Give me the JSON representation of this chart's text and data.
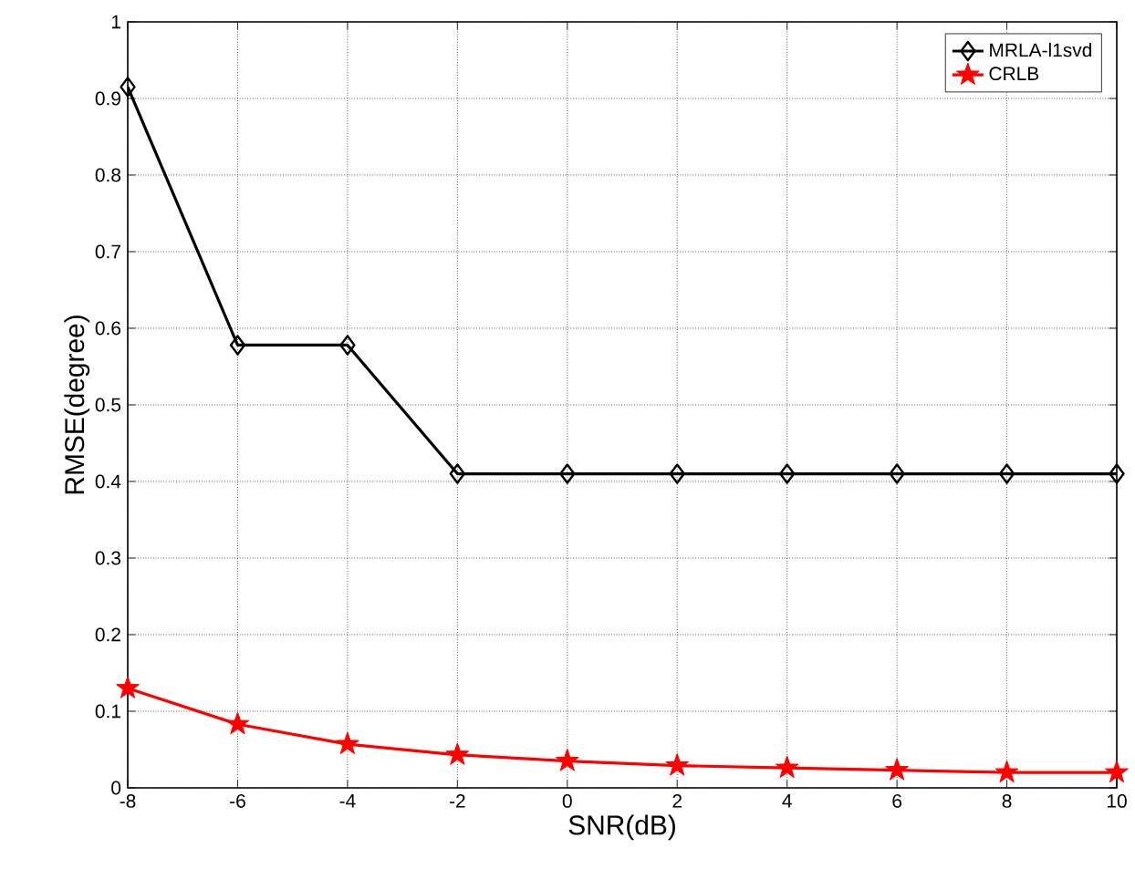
{
  "chart_data": {
    "type": "line",
    "xlabel": "SNR(dB)",
    "ylabel": "RMSE(degree)",
    "x": [
      -8,
      -6,
      -4,
      -2,
      0,
      2,
      4,
      6,
      8,
      10
    ],
    "series": [
      {
        "name": "MRLA-l1svd",
        "color": "#000000",
        "marker": "diamond",
        "values": [
          0.915,
          0.578,
          0.578,
          0.41,
          0.41,
          0.41,
          0.41,
          0.41,
          0.41,
          0.41
        ]
      },
      {
        "name": "CRLB",
        "color": "#ff0000",
        "marker": "star",
        "values": [
          0.13,
          0.083,
          0.057,
          0.043,
          0.035,
          0.029,
          0.026,
          0.023,
          0.02,
          0.02
        ]
      }
    ],
    "xlim": [
      -8,
      10
    ],
    "ylim": [
      0,
      1
    ],
    "xticks": [
      -8,
      -6,
      -4,
      -2,
      0,
      2,
      4,
      6,
      8,
      10
    ],
    "yticks": [
      0,
      0.1,
      0.2,
      0.3,
      0.4,
      0.5,
      0.6,
      0.7,
      0.8,
      0.9,
      1
    ],
    "grid": true,
    "legend": "top right",
    "line_style": "solid"
  }
}
